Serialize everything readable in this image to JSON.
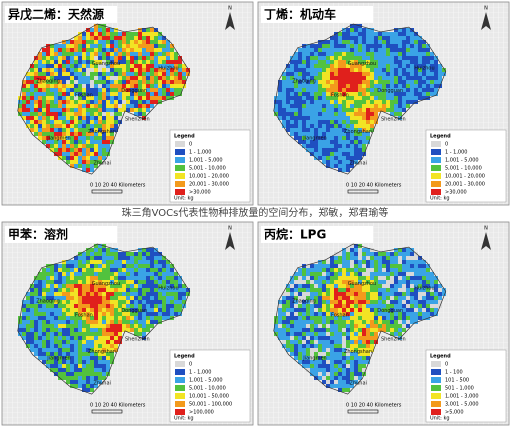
{
  "caption": "珠三角VOCs代表性物种排放量的空间分布，郑敏，郑君瑜等",
  "panels": [
    {
      "title": "异戊二烯：天然源",
      "north": "N",
      "scale": "0 10 20   40 Kilometers",
      "cities": [
        "Zhaoqing",
        "Guangzhou",
        "Foshan",
        "Dongguan",
        "Huizhou",
        "Jiangmen",
        "Zhongshan",
        "Shenzhen",
        "Zhuhai"
      ],
      "legend": {
        "title": "Legend",
        "items": [
          "0",
          "1 - 1,000",
          "1,001 - 5,000",
          "5,001 - 10,000",
          "10,001 - 20,000",
          "20,001 - 30,000",
          ">30,000"
        ],
        "unit": "Unit: kg"
      }
    },
    {
      "title": "丁烯：机动车",
      "north": "N",
      "scale": "0 10 20   40 Kilometers",
      "cities": [
        "Zhaoqing",
        "Guangzhou",
        "Foshan",
        "Dongguan",
        "Huizhou",
        "Jiangmen",
        "Zhongshan",
        "Shenzhen",
        "Zhuhai"
      ],
      "legend": {
        "title": "Legend",
        "items": [
          "0",
          "1 - 1,000",
          "1,001 - 5,000",
          "5,001 - 10,000",
          "10,001 - 20,000",
          "20,001 - 30,000",
          ">30,000"
        ],
        "unit": "Unit: kg"
      }
    },
    {
      "title": "甲苯：溶剂",
      "north": "N",
      "scale": "0 10 20   40 Kilometers",
      "cities": [
        "Zhaoqing",
        "Guangzhou",
        "Foshan",
        "Dongguan",
        "Huizhou",
        "Jiangmen",
        "Zhongshan",
        "Shenzhen",
        "Zhuhai"
      ],
      "legend": {
        "title": "Legend",
        "items": [
          "0",
          "1 - 1,000",
          "1,001 - 5,000",
          "5,001 - 10,000",
          "10,001 - 50,000",
          "50,001 - 100,000",
          ">100,000"
        ],
        "unit": "Unit: kg"
      }
    },
    {
      "title": "丙烷：LPG",
      "north": "N",
      "scale": "0 10 20   40 Kilometers",
      "cities": [
        "Zhaoqing",
        "Guangzhou",
        "Foshan",
        "Dongguan",
        "Huizhou",
        "Jiangmen",
        "Zhongshan",
        "Shenzhen",
        "Zhuhai"
      ],
      "legend": {
        "title": "Legend",
        "items": [
          "0",
          "1 - 100",
          "101 - 500",
          "501 - 1,000",
          "1,001 - 3,000",
          "3,001 - 5,000",
          ">5,000"
        ],
        "unit": "Unit: kg"
      }
    }
  ]
}
